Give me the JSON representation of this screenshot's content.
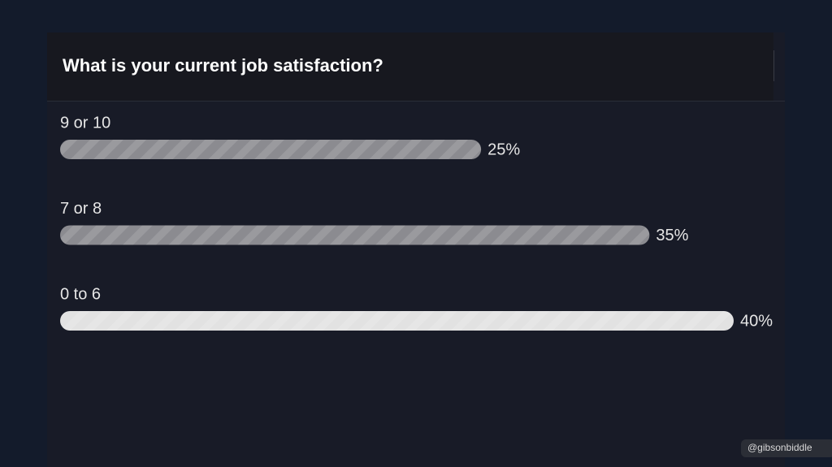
{
  "chart_data": {
    "type": "hbar",
    "title": "What is your current job satisfaction?",
    "categories": [
      "9 or 10",
      "7 or 8",
      "0 to 6"
    ],
    "values": [
      25,
      35,
      40
    ],
    "value_labels": [
      "25%",
      "35%",
      "40%"
    ],
    "colors": [
      "#8b8b90",
      "#8b8b90",
      "#e2e2e2"
    ],
    "xlim": [
      0,
      40
    ]
  },
  "watermark": "@gibsonbiddle"
}
